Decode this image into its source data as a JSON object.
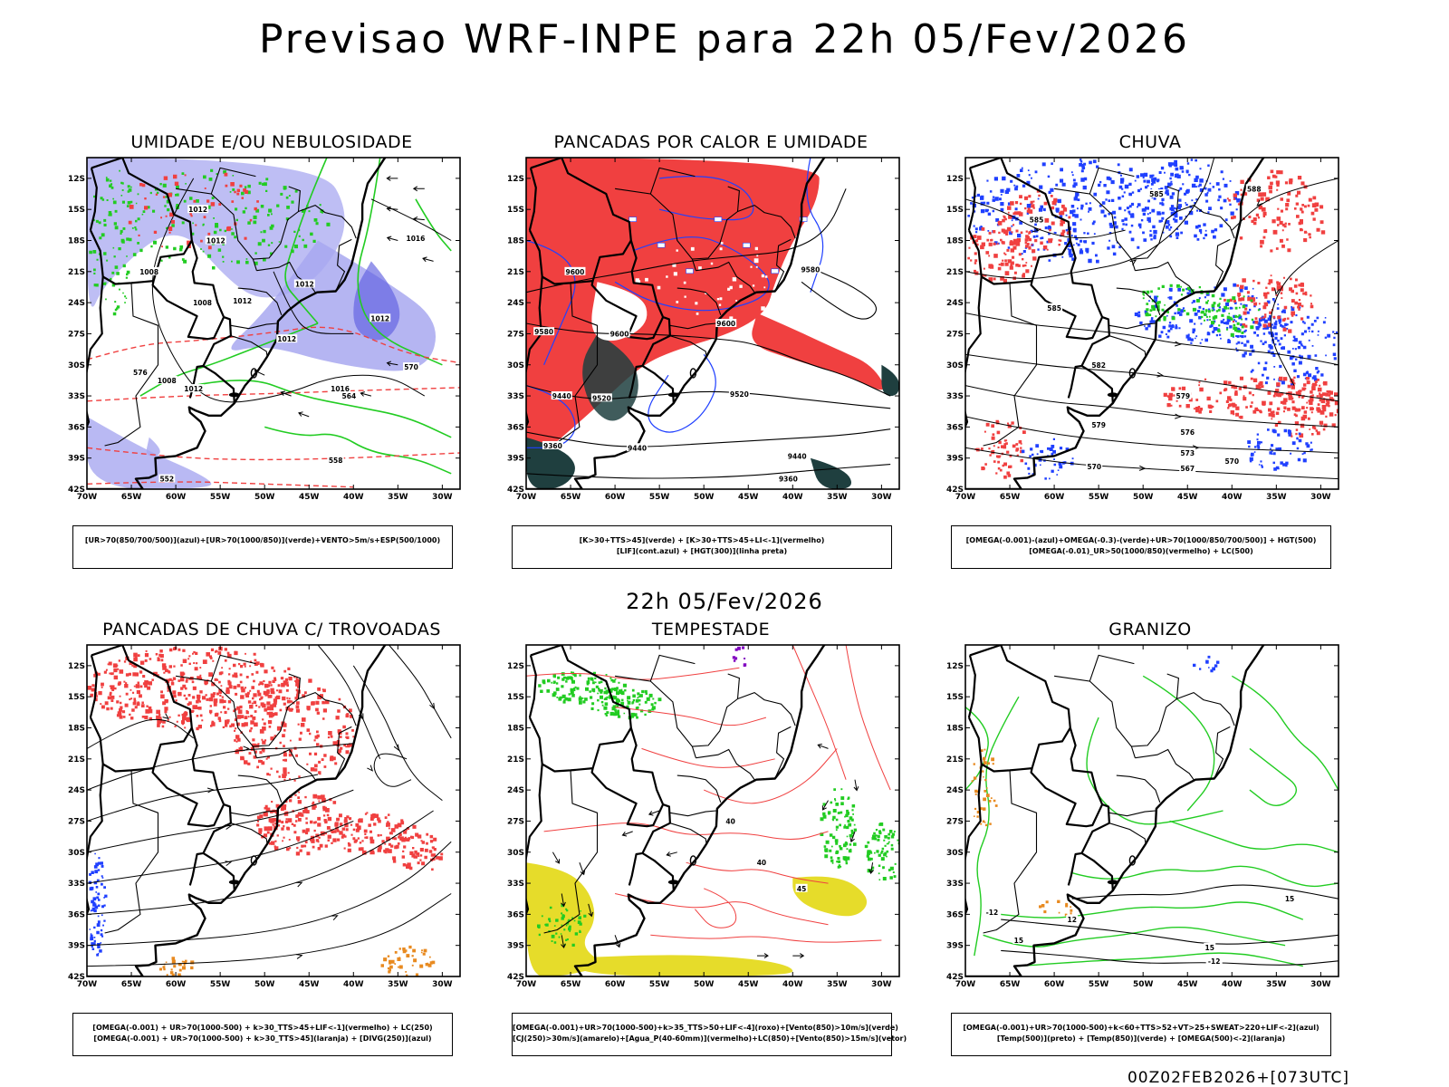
{
  "header": {
    "title": "Previsao WRF-INPE  para 22h 05/Fev/2026",
    "mid_title": "22h 05/Fev/2026",
    "footer": "00Z02FEB2026+[073UTC]"
  },
  "axes": {
    "lat_ticks": [
      "12S",
      "15S",
      "18S",
      "21S",
      "24S",
      "27S",
      "30S",
      "33S",
      "36S",
      "39S",
      "42S"
    ],
    "lon_ticks": [
      "70W",
      "65W",
      "60W",
      "55W",
      "50W",
      "45W",
      "40W",
      "35W",
      "30W"
    ]
  },
  "colors": {
    "ur_blue": "#a8a8f0",
    "ur_blue_dark": "#6060e0",
    "green": "#22cc22",
    "red": "#f04040",
    "blue": "#2040ff",
    "dark_teal": "#1f3f3f",
    "yellow": "#e6dc2a",
    "orange": "#e88a20"
  },
  "chart_data": [
    {
      "type": "heatmap",
      "title": "UMIDADE E/OU NEBULOSIDADE",
      "legend": [
        "[UR>70(850/700/500)](azul)+[UR>70(1000/850)](verde)+VENTO>5m/s+ESP(500/1000)"
      ],
      "contour_labels": [
        {
          "text": "1012",
          "lon": -57.5,
          "lat": -15.0
        },
        {
          "text": "1012",
          "lon": -55.5,
          "lat": -18.0
        },
        {
          "text": "1012",
          "lon": -52.5,
          "lat": -23.8
        },
        {
          "text": "1012",
          "lon": -45.5,
          "lat": -22.2
        },
        {
          "text": "1012",
          "lon": -47.5,
          "lat": -27.5
        },
        {
          "text": "1012",
          "lon": -37.0,
          "lat": -25.5
        },
        {
          "text": "1012",
          "lon": -58.0,
          "lat": -32.3
        },
        {
          "text": "1008",
          "lon": -63.0,
          "lat": -21.0
        },
        {
          "text": "1008",
          "lon": -57.0,
          "lat": -24.0
        },
        {
          "text": "1008",
          "lon": -61.0,
          "lat": -31.5
        },
        {
          "text": "1016",
          "lon": -33.0,
          "lat": -17.8
        },
        {
          "text": "1016",
          "lon": -41.5,
          "lat": -32.3
        },
        {
          "text": "570",
          "lon": -33.5,
          "lat": -30.2
        },
        {
          "text": "564",
          "lon": -40.5,
          "lat": -33.0
        },
        {
          "text": "558",
          "lon": -42.0,
          "lat": -39.2
        },
        {
          "text": "576",
          "lon": -64.0,
          "lat": -30.7
        },
        {
          "text": "552",
          "lon": -61.0,
          "lat": -41.0
        }
      ]
    },
    {
      "type": "heatmap",
      "title": "PANCADAS POR CALOR E UMIDADE",
      "legend": [
        "[K>30+TTS>45](verde) + [K>30+TTS>45+LI<-1](vermelho)",
        "[LIF](cont.azul) + [HGT(300)](linha preta)"
      ],
      "contour_labels": [
        {
          "text": "9600",
          "lon": -64.5,
          "lat": -21.0
        },
        {
          "text": "9580",
          "lon": -68.0,
          "lat": -26.8
        },
        {
          "text": "9600",
          "lon": -59.5,
          "lat": -27.0
        },
        {
          "text": "9600",
          "lon": -47.5,
          "lat": -26.0
        },
        {
          "text": "9580",
          "lon": -38.0,
          "lat": -20.8
        },
        {
          "text": "9520",
          "lon": -46.0,
          "lat": -32.8
        },
        {
          "text": "9520",
          "lon": -61.5,
          "lat": -33.2
        },
        {
          "text": "9440",
          "lon": -66.0,
          "lat": -33.0
        },
        {
          "text": "9440",
          "lon": -57.5,
          "lat": -38.0
        },
        {
          "text": "9440",
          "lon": -39.5,
          "lat": -38.8
        },
        {
          "text": "9360",
          "lon": -67.0,
          "lat": -37.8
        },
        {
          "text": "9360",
          "lon": -40.5,
          "lat": -41.0
        }
      ]
    },
    {
      "type": "heatmap",
      "title": "CHUVA",
      "legend": [
        "[OMEGA(-0.001)-(azul)+OMEGA(-0.3)-(verde)+UR>70(1000/850/700/500)] + HGT(500)",
        "[OMEGA(-0.01)_UR>50(1000/850)(vermelho) + LC(500)"
      ],
      "contour_labels": [
        {
          "text": "585",
          "lon": -48.5,
          "lat": -13.5
        },
        {
          "text": "585",
          "lon": -62.0,
          "lat": -16.0
        },
        {
          "text": "585",
          "lon": -60.0,
          "lat": -24.5
        },
        {
          "text": "582",
          "lon": -55.0,
          "lat": -30.0
        },
        {
          "text": "579",
          "lon": -45.5,
          "lat": -33.0
        },
        {
          "text": "579",
          "lon": -55.0,
          "lat": -35.8
        },
        {
          "text": "576",
          "lon": -45.0,
          "lat": -36.5
        },
        {
          "text": "573",
          "lon": -45.0,
          "lat": -38.5
        },
        {
          "text": "570",
          "lon": -55.5,
          "lat": -39.8
        },
        {
          "text": "570",
          "lon": -40.0,
          "lat": -39.3
        },
        {
          "text": "567",
          "lon": -45.0,
          "lat": -40.0
        },
        {
          "text": "588",
          "lon": -37.5,
          "lat": -13.0
        }
      ]
    },
    {
      "type": "heatmap",
      "title": "PANCADAS DE CHUVA C/ TROVOADAS",
      "legend": [
        "[OMEGA(-0.001) + UR>70(1000-500) + k>30_TTS>45+LIF<-1](vermelho) + LC(250)",
        "[OMEGA(-0.001) + UR>70(1000-500) + k>30_TTS>45](laranja) + [DIVG(250)](azul)"
      ],
      "contour_labels": []
    },
    {
      "type": "heatmap",
      "title": "TEMPESTADE",
      "legend": [
        "[OMEGA(-0.001)+UR>70(1000-500)+k>35_TTS>50+LIF<-4](roxo)+[Vento(850)>10m/s](verde)",
        "[CJ(250)>30m/s](amarelo)+[Agua_P(40-60mm)](vermelho)+LC(850)+[Vento(850)>15m/s](vetor)"
      ],
      "contour_labels": [
        {
          "text": "40",
          "lon": -47.0,
          "lat": -27.0
        },
        {
          "text": "40",
          "lon": -43.5,
          "lat": -31.0
        },
        {
          "text": "45",
          "lon": -39.0,
          "lat": -33.5
        }
      ]
    },
    {
      "type": "heatmap",
      "title": "GRANIZO",
      "legend": [
        "[OMEGA(-0.001)+UR>70(1000-500)+k<60+TTS>52+VT>25+SWEAT>220+LIF<-2](azul)",
        "[Temp(500)](preto) + [Temp(850)](verde) + [OMEGA(500)<-2](laranja)"
      ],
      "contour_labels": [
        {
          "text": "-12",
          "lon": -42.0,
          "lat": -40.5
        },
        {
          "text": "-12",
          "lon": -67.0,
          "lat": -35.8
        },
        {
          "text": "15",
          "lon": -42.5,
          "lat": -39.2
        },
        {
          "text": "15",
          "lon": -33.5,
          "lat": -34.5
        },
        {
          "text": "15",
          "lon": -64.0,
          "lat": -38.5
        },
        {
          "text": "12",
          "lon": -58.0,
          "lat": -36.5
        }
      ]
    }
  ]
}
